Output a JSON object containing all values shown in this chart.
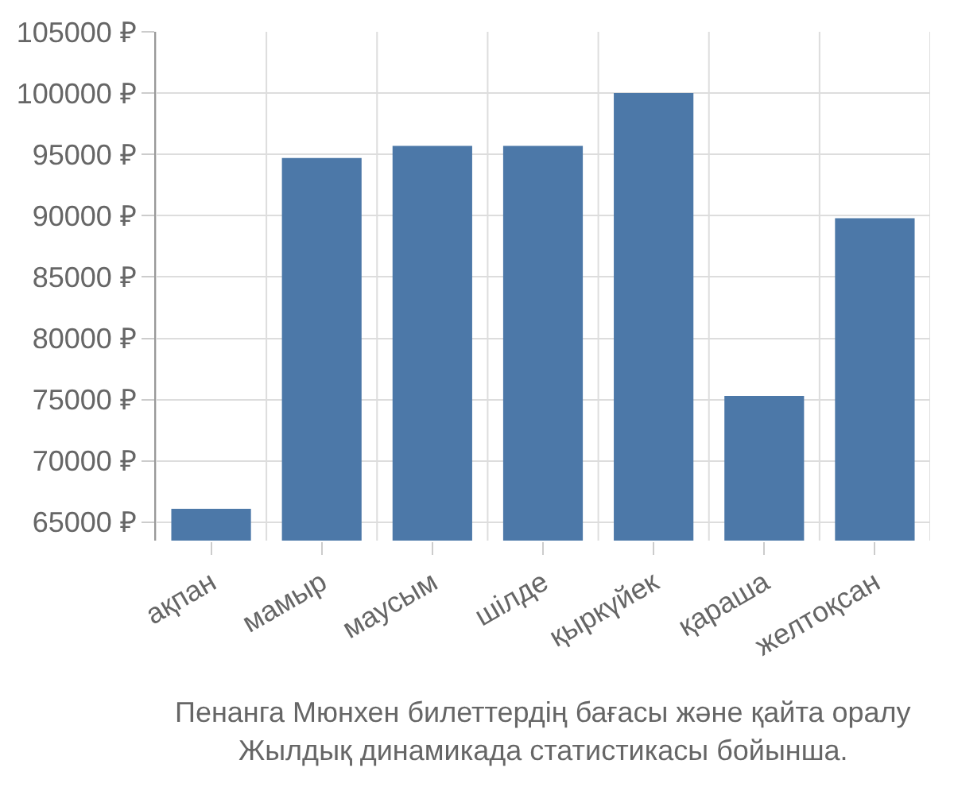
{
  "chart_data": {
    "type": "bar",
    "categories": [
      "ақпан",
      "мамыр",
      "маусым",
      "шілде",
      "қыркүйек",
      "қараша",
      "желтоқсан"
    ],
    "values": [
      66100,
      94700,
      95700,
      95700,
      100000,
      75300,
      89800
    ],
    "color": "#4c78a8",
    "ylim": [
      63500,
      105000
    ],
    "yticks": [
      {
        "value": 65000,
        "label": "65000 ₽"
      },
      {
        "value": 70000,
        "label": "70000 ₽"
      },
      {
        "value": 75000,
        "label": "75000 ₽"
      },
      {
        "value": 80000,
        "label": "80000 ₽"
      },
      {
        "value": 85000,
        "label": "85000 ₽"
      },
      {
        "value": 90000,
        "label": "90000 ₽"
      },
      {
        "value": 95000,
        "label": "95000 ₽"
      },
      {
        "value": 100000,
        "label": "100000 ₽"
      },
      {
        "value": 105000,
        "label": "105000 ₽"
      }
    ],
    "grid": true,
    "annotations": [
      "Пенанга Мюнхен билеттердің бағасы және қайта оралу",
      "Жылдық динамикада статистикасы бойынша."
    ]
  }
}
